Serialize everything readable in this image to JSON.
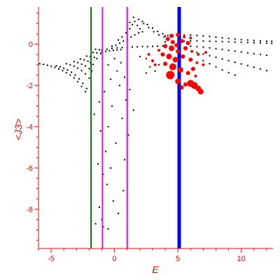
{
  "chart_data": {
    "type": "scatter",
    "title": "",
    "xlabel": "E",
    "ylabel": "<J3>",
    "xlim": [
      -6,
      12.5
    ],
    "ylim": [
      -9.9,
      1.8
    ],
    "grid": false,
    "x_ticks": [
      -5,
      0,
      5,
      10
    ],
    "y_ticks": [
      -8,
      -6,
      -4,
      -2,
      0
    ],
    "axis_color": "#ff0000",
    "vertical_lines": [
      {
        "x": -1.85,
        "color": "#007700",
        "weight": 2
      },
      {
        "x": -0.95,
        "color": "#ff00ff",
        "weight": 2
      },
      {
        "x": 1.0,
        "color": "#ff00ff",
        "weight": 2
      },
      {
        "x": 5.1,
        "color": "#0000ff",
        "weight": 5
      }
    ],
    "series": [
      {
        "color": "#000000",
        "marker": "small-dot",
        "points": [
          [
            -5.9,
            -0.95
          ],
          [
            -5.6,
            -0.98
          ],
          [
            -5.3,
            -1.02
          ],
          [
            -5.0,
            -1.07
          ],
          [
            -4.7,
            -1.13
          ],
          [
            -4.4,
            -1.2
          ],
          [
            -4.1,
            -1.28
          ],
          [
            -3.8,
            -1.38
          ],
          [
            -3.5,
            -1.5
          ],
          [
            -3.2,
            -1.64
          ],
          [
            -2.9,
            -1.82
          ],
          [
            -2.6,
            -2.05
          ],
          [
            -2.3,
            -2.3
          ],
          [
            -4.6,
            -1.05
          ],
          [
            -4.3,
            -1.1
          ],
          [
            -4.0,
            -1.17
          ],
          [
            -3.7,
            -1.25
          ],
          [
            -3.4,
            -1.36
          ],
          [
            -3.1,
            -1.5
          ],
          [
            -2.8,
            -1.68
          ],
          [
            -2.5,
            -1.9
          ],
          [
            -2.2,
            -2.15
          ],
          [
            -3.8,
            -0.95
          ],
          [
            -3.5,
            -1.0
          ],
          [
            -3.2,
            -1.07
          ],
          [
            -2.9,
            -1.16
          ],
          [
            -2.6,
            -1.28
          ],
          [
            -2.3,
            -1.44
          ],
          [
            -2.0,
            -1.65
          ],
          [
            -3.2,
            -0.85
          ],
          [
            -2.9,
            -0.9
          ],
          [
            -2.6,
            -0.97
          ],
          [
            -2.3,
            -1.06
          ],
          [
            -2.0,
            -1.18
          ],
          [
            -1.8,
            -1.3
          ],
          [
            -2.7,
            -0.72
          ],
          [
            -2.4,
            -0.76
          ],
          [
            -2.1,
            -0.82
          ],
          [
            -1.9,
            -0.9
          ],
          [
            -1.7,
            -0.98
          ],
          [
            -2.2,
            -0.58
          ],
          [
            -1.9,
            -0.6
          ],
          [
            -1.6,
            -0.64
          ],
          [
            -1.4,
            -0.7
          ],
          [
            -1.7,
            -0.4
          ],
          [
            -1.4,
            -0.42
          ],
          [
            -1.1,
            -0.46
          ],
          [
            -1.5,
            -0.25
          ],
          [
            -1.2,
            -0.27
          ],
          [
            -1.0,
            -0.3
          ],
          [
            -0.6,
            -0.25
          ],
          [
            -0.2,
            -0.2
          ],
          [
            0.2,
            -0.18
          ],
          [
            0.6,
            -0.16
          ],
          [
            1.0,
            -0.15
          ],
          [
            1.4,
            -0.14
          ],
          [
            1.8,
            -0.13
          ],
          [
            2.2,
            -0.12
          ],
          [
            2.6,
            -0.12
          ],
          [
            3.0,
            -0.11
          ],
          [
            3.4,
            -0.1
          ],
          [
            3.8,
            -0.09
          ],
          [
            -1.0,
            -0.4
          ],
          [
            -0.7,
            -0.35
          ],
          [
            -0.4,
            -0.32
          ],
          [
            -0.1,
            -0.3
          ],
          [
            0.2,
            -0.28
          ],
          [
            0.5,
            -0.26
          ],
          [
            -0.2,
            -0.1
          ],
          [
            0.1,
            -0.05
          ],
          [
            0.4,
            0.05
          ],
          [
            0.7,
            0.15
          ],
          [
            1.0,
            0.25
          ],
          [
            1.3,
            0.35
          ],
          [
            1.6,
            0.45
          ],
          [
            1.9,
            0.55
          ],
          [
            2.2,
            0.6
          ],
          [
            0.3,
            0.2
          ],
          [
            0.6,
            0.35
          ],
          [
            0.9,
            0.55
          ],
          [
            1.2,
            0.75
          ],
          [
            1.4,
            0.95
          ],
          [
            1.6,
            1.1
          ],
          [
            1.8,
            0.9
          ],
          [
            2.0,
            0.75
          ],
          [
            1.0,
            0.8
          ],
          [
            1.2,
            1.05
          ],
          [
            1.5,
            1.3
          ],
          [
            1.9,
            1.2
          ],
          [
            2.3,
            1.0
          ],
          [
            2.7,
            0.8
          ],
          [
            3.1,
            0.6
          ],
          [
            3.5,
            0.45
          ],
          [
            3.9,
            0.35
          ],
          [
            2.2,
            1.1
          ],
          [
            2.6,
            0.95
          ],
          [
            3.0,
            0.78
          ],
          [
            3.4,
            0.62
          ],
          [
            3.8,
            0.5
          ],
          [
            4.2,
            0.42
          ],
          [
            4.0,
            0.4
          ],
          [
            4.5,
            0.42
          ],
          [
            5.0,
            0.44
          ],
          [
            5.5,
            0.45
          ],
          [
            6.0,
            0.44
          ],
          [
            6.5,
            0.42
          ],
          [
            7.0,
            0.4
          ],
          [
            7.5,
            0.37
          ],
          [
            8.0,
            0.34
          ],
          [
            8.5,
            0.31
          ],
          [
            9.0,
            0.28
          ],
          [
            9.5,
            0.25
          ],
          [
            10.0,
            0.22
          ],
          [
            10.5,
            0.2
          ],
          [
            11.0,
            0.18
          ],
          [
            11.5,
            0.16
          ],
          [
            12.0,
            0.15
          ],
          [
            12.4,
            0.14
          ],
          [
            4.0,
            0.1
          ],
          [
            4.5,
            0.12
          ],
          [
            5.0,
            0.14
          ],
          [
            5.5,
            0.15
          ],
          [
            6.0,
            0.16
          ],
          [
            6.5,
            0.16
          ],
          [
            7.0,
            0.15
          ],
          [
            7.5,
            0.14
          ],
          [
            8.0,
            0.13
          ],
          [
            8.5,
            0.12
          ],
          [
            9.0,
            0.11
          ],
          [
            9.5,
            0.1
          ],
          [
            10.0,
            0.09
          ],
          [
            10.5,
            0.08
          ],
          [
            11.0,
            0.07
          ],
          [
            11.5,
            0.06
          ],
          [
            12.0,
            0.05
          ],
          [
            12.4,
            0.04
          ],
          [
            6.0,
            -0.1
          ],
          [
            6.5,
            -0.12
          ],
          [
            7.0,
            -0.15
          ],
          [
            7.5,
            -0.18
          ],
          [
            8.0,
            -0.22
          ],
          [
            8.5,
            -0.26
          ],
          [
            9.0,
            -0.3
          ],
          [
            9.5,
            -0.34
          ],
          [
            10.0,
            -0.38
          ],
          [
            10.5,
            -0.42
          ],
          [
            11.0,
            -0.46
          ],
          [
            11.5,
            -0.5
          ],
          [
            12.0,
            -0.54
          ],
          [
            6.5,
            -0.4
          ],
          [
            7.0,
            -0.48
          ],
          [
            7.5,
            -0.56
          ],
          [
            8.0,
            -0.64
          ],
          [
            8.5,
            -0.72
          ],
          [
            9.0,
            -0.8
          ],
          [
            9.5,
            -0.88
          ],
          [
            10.0,
            -0.96
          ],
          [
            10.5,
            -1.04
          ],
          [
            11.0,
            -1.12
          ],
          [
            11.5,
            -1.2
          ],
          [
            12.0,
            -1.28
          ],
          [
            7.0,
            -0.8
          ],
          [
            7.5,
            -0.95
          ],
          [
            8.0,
            -1.1
          ],
          [
            8.5,
            -1.25
          ],
          [
            9.0,
            -1.38
          ],
          [
            9.5,
            -1.5
          ],
          [
            2.0,
            -0.6
          ],
          [
            2.5,
            -0.7
          ],
          [
            3.0,
            -0.85
          ],
          [
            3.5,
            -1.0
          ],
          [
            2.8,
            -1.1
          ],
          [
            3.2,
            -1.3
          ],
          [
            2.5,
            -1.4
          ],
          [
            0.0,
            -0.7
          ],
          [
            0.5,
            -0.9
          ],
          [
            1.0,
            -1.1
          ],
          [
            -0.5,
            -1.0
          ],
          [
            0.2,
            -1.3
          ],
          [
            0.8,
            -1.6
          ],
          [
            -0.3,
            -1.7
          ],
          [
            0.4,
            -2.0
          ],
          [
            1.2,
            -2.2
          ],
          [
            -0.8,
            -2.3
          ],
          [
            0.9,
            -2.7
          ],
          [
            -0.2,
            -3.0
          ],
          [
            1.5,
            -3.2
          ],
          [
            0.6,
            -3.6
          ],
          [
            -0.5,
            -4.0
          ],
          [
            1.1,
            -4.4
          ],
          [
            0.1,
            -4.8
          ],
          [
            -0.7,
            -5.2
          ],
          [
            0.8,
            -5.6
          ],
          [
            -0.3,
            -6.0
          ],
          [
            -0.9,
            -6.3
          ],
          [
            -0.6,
            -6.8
          ],
          [
            0.7,
            -7.1
          ],
          [
            -0.1,
            -7.6
          ],
          [
            -1.2,
            -7.9
          ],
          [
            0.3,
            -8.2
          ],
          [
            -1.0,
            -8.5
          ],
          [
            -0.9,
            -8.85
          ],
          [
            -0.5,
            -8.95
          ],
          [
            -1.5,
            -8.7
          ],
          [
            -1.3,
            -5.8
          ],
          [
            -1.1,
            -4.2
          ],
          [
            -1.6,
            -3.4
          ],
          [
            -1.2,
            -2.8
          ]
        ]
      },
      {
        "color": "#ff0000",
        "marker": "circle",
        "points": [
          [
            4.5,
            0.4,
            3
          ],
          [
            5.0,
            0.45,
            3
          ],
          [
            5.5,
            0.35,
            2
          ],
          [
            6.0,
            0.3,
            2
          ],
          [
            4.2,
            0.25,
            3
          ],
          [
            4.6,
            0.1,
            3
          ],
          [
            5.3,
            0.15,
            3
          ],
          [
            4.0,
            -0.1,
            3
          ],
          [
            4.5,
            -0.2,
            4
          ],
          [
            5.0,
            -0.35,
            3
          ],
          [
            5.6,
            -0.2,
            3
          ],
          [
            6.1,
            -0.35,
            2
          ],
          [
            6.6,
            -0.5,
            2
          ],
          [
            3.8,
            -0.5,
            3
          ],
          [
            4.3,
            -0.6,
            4
          ],
          [
            4.8,
            -0.75,
            4
          ],
          [
            5.4,
            -0.6,
            3
          ],
          [
            6.0,
            -0.75,
            3
          ],
          [
            6.5,
            -0.9,
            2
          ],
          [
            7.0,
            -1.0,
            2
          ],
          [
            4.0,
            -0.95,
            3
          ],
          [
            4.6,
            -1.1,
            5
          ],
          [
            5.2,
            -1.25,
            4
          ],
          [
            5.8,
            -1.4,
            3
          ],
          [
            6.4,
            -1.55,
            2
          ],
          [
            4.4,
            -1.5,
            6
          ],
          [
            5.0,
            -1.8,
            4
          ],
          [
            5.6,
            -1.95,
            3
          ],
          [
            6.0,
            -1.9,
            5
          ],
          [
            6.3,
            -2.0,
            5
          ],
          [
            6.6,
            -2.15,
            4
          ],
          [
            6.8,
            -2.3,
            4
          ],
          [
            5.3,
            -2.1,
            3
          ],
          [
            3.0,
            -0.8,
            2
          ],
          [
            3.2,
            -1.0,
            2
          ],
          [
            3.5,
            -0.3,
            2
          ],
          [
            2.7,
            -0.5,
            2
          ],
          [
            7.2,
            -0.4,
            2
          ],
          [
            5.8,
            0.05,
            3
          ],
          [
            6.2,
            -1.2,
            3
          ],
          [
            4.9,
            -0.05,
            3
          ]
        ]
      }
    ]
  }
}
